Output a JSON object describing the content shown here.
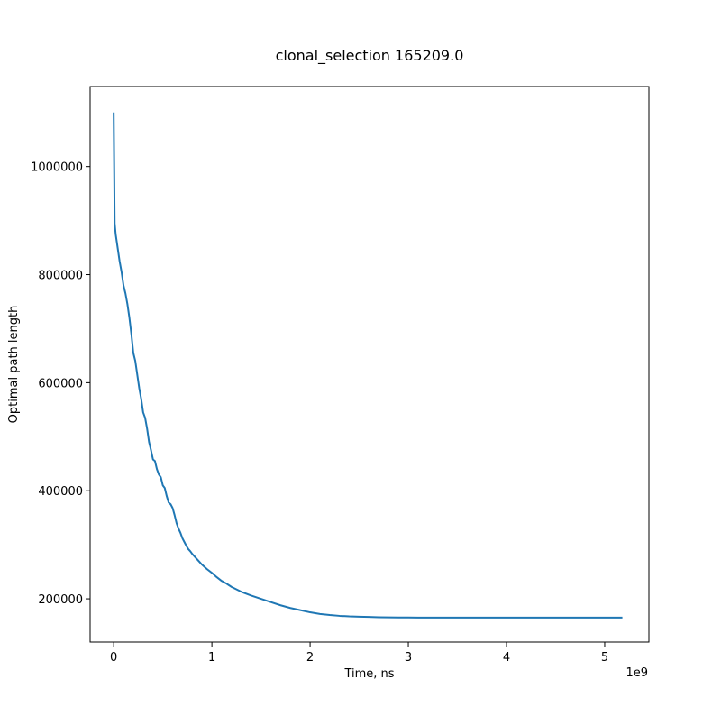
{
  "chart_data": {
    "type": "line",
    "title": "clonal_selection 165209.0",
    "xlabel": "Time, ns",
    "ylabel": "Optimal path length",
    "x_offset_label": "1e9",
    "xlim": [
      -0.24,
      5.45
    ],
    "ylim": [
      120000,
      1148000
    ],
    "xticks": [
      0,
      1,
      2,
      3,
      4,
      5
    ],
    "xtick_labels": [
      "0",
      "1",
      "2",
      "3",
      "4",
      "5"
    ],
    "yticks": [
      200000,
      400000,
      600000,
      800000,
      1000000
    ],
    "ytick_labels": [
      "200000",
      "400000",
      "600000",
      "800000",
      "1000000"
    ],
    "grid": false,
    "series": [
      {
        "color": "#1f77b4",
        "x": [
          0.0,
          0.01,
          0.02,
          0.04,
          0.06,
          0.08,
          0.1,
          0.12,
          0.14,
          0.16,
          0.18,
          0.2,
          0.22,
          0.24,
          0.26,
          0.28,
          0.3,
          0.32,
          0.34,
          0.36,
          0.38,
          0.4,
          0.42,
          0.44,
          0.46,
          0.48,
          0.5,
          0.52,
          0.54,
          0.56,
          0.58,
          0.6,
          0.62,
          0.64,
          0.66,
          0.68,
          0.7,
          0.72,
          0.74,
          0.76,
          0.78,
          0.8,
          0.85,
          0.9,
          0.95,
          1.0,
          1.05,
          1.1,
          1.15,
          1.2,
          1.3,
          1.4,
          1.5,
          1.6,
          1.7,
          1.8,
          1.9,
          2.0,
          2.1,
          2.2,
          2.3,
          2.4,
          2.5,
          2.6,
          2.7,
          2.8,
          2.9,
          3.0,
          3.1,
          3.2,
          3.5,
          4.0,
          4.5,
          5.0,
          5.18
        ],
        "y": [
          1100000,
          895000,
          875000,
          850000,
          825000,
          805000,
          780000,
          765000,
          745000,
          720000,
          690000,
          655000,
          640000,
          615000,
          590000,
          570000,
          545000,
          535000,
          515000,
          490000,
          475000,
          458000,
          455000,
          440000,
          430000,
          425000,
          410000,
          405000,
          390000,
          378000,
          375000,
          368000,
          355000,
          340000,
          330000,
          322000,
          312000,
          305000,
          298000,
          292000,
          288000,
          283000,
          273000,
          263000,
          255000,
          248000,
          240000,
          233000,
          228000,
          222000,
          213000,
          206000,
          200000,
          194000,
          188000,
          183000,
          179000,
          175000,
          172000,
          170000,
          168500,
          167500,
          167000,
          166500,
          166000,
          165700,
          165500,
          165400,
          165300,
          165250,
          165230,
          165220,
          165215,
          165210,
          165209
        ]
      }
    ]
  }
}
